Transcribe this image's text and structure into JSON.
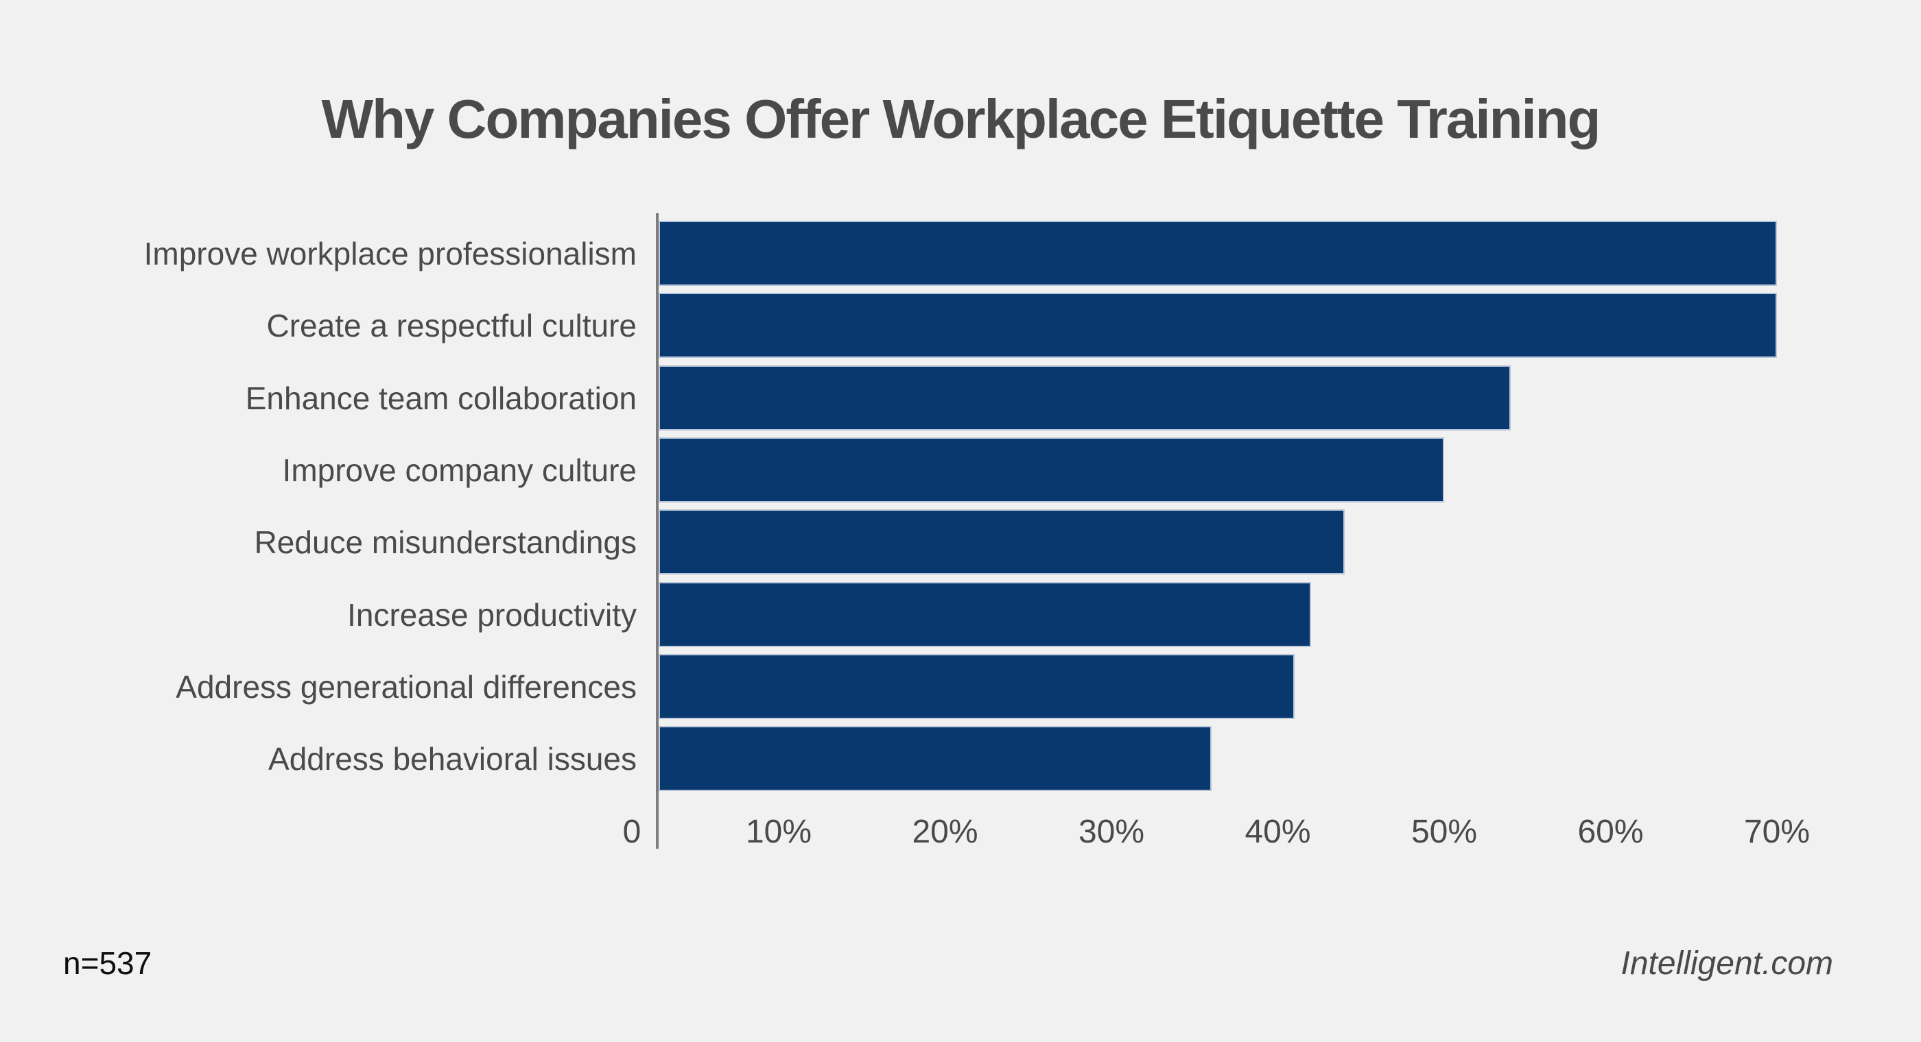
{
  "chart_data": {
    "type": "bar",
    "orientation": "horizontal",
    "title": "Why Companies Offer Workplace Etiquette Training",
    "categories": [
      "Improve workplace professionalism",
      "Create a respectful culture",
      "Enhance team collaboration",
      "Improve company culture",
      "Reduce misunderstandings",
      "Increase productivity",
      "Address generational differences",
      "Address behavioral issues"
    ],
    "values": [
      70,
      70,
      54,
      50,
      44,
      42,
      41,
      36
    ],
    "unit": "%",
    "xlabel": "",
    "ylabel": "",
    "xlim": [
      0,
      70
    ],
    "x_tick_values": [
      0,
      10,
      20,
      30,
      40,
      50,
      60,
      70
    ],
    "x_tick_labels": [
      "0",
      "10%",
      "20%",
      "30%",
      "40%",
      "50%",
      "60%",
      "70%"
    ],
    "grid": false,
    "legend": false,
    "bar_color": "#09386f",
    "bar_border_color": "#b9c6da",
    "axis_line_color": "#7d7d7d",
    "background_color": "#f1f1f2",
    "text_color": "#4a4a4a"
  },
  "footer": {
    "sample_size": "n=537",
    "source": "Intelligent.com"
  }
}
